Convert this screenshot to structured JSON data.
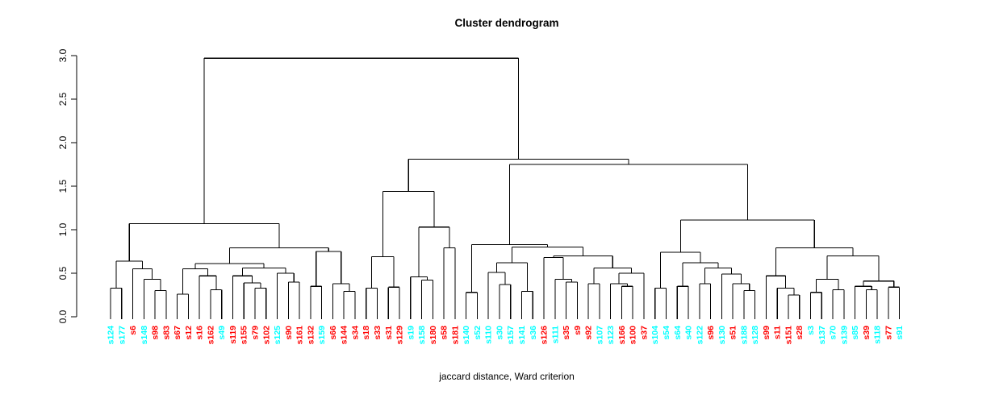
{
  "chart_data": {
    "type": "dendrogram",
    "title": "Cluster dendrogram",
    "xlabel": "jaccard distance, Ward criterion",
    "y_ticks": [
      "0.0",
      "0.5",
      "1.0",
      "1.5",
      "2.0",
      "2.5",
      "3.0"
    ],
    "ylim": [
      0,
      3
    ],
    "root_height": 2.97,
    "legend_colors": {
      "group_red": "#FF0000",
      "group_cyan": "#00FFFF"
    },
    "line_color": "#000000",
    "leaves": [
      {
        "label": "s124",
        "color": "#00FFFF"
      },
      {
        "label": "s177",
        "color": "#00FFFF"
      },
      {
        "label": "s6",
        "color": "#FF0000"
      },
      {
        "label": "s148",
        "color": "#00FFFF"
      },
      {
        "label": "s98",
        "color": "#FF0000"
      },
      {
        "label": "s83",
        "color": "#FF0000"
      },
      {
        "label": "s67",
        "color": "#FF0000"
      },
      {
        "label": "s12",
        "color": "#FF0000"
      },
      {
        "label": "s16",
        "color": "#FF0000"
      },
      {
        "label": "s162",
        "color": "#FF0000"
      },
      {
        "label": "s49",
        "color": "#00FFFF"
      },
      {
        "label": "s119",
        "color": "#FF0000"
      },
      {
        "label": "s155",
        "color": "#FF0000"
      },
      {
        "label": "s79",
        "color": "#FF0000"
      },
      {
        "label": "s102",
        "color": "#FF0000"
      },
      {
        "label": "s125",
        "color": "#00FFFF"
      },
      {
        "label": "s90",
        "color": "#FF0000"
      },
      {
        "label": "s161",
        "color": "#FF0000"
      },
      {
        "label": "s132",
        "color": "#FF0000"
      },
      {
        "label": "s159",
        "color": "#00FFFF"
      },
      {
        "label": "s66",
        "color": "#FF0000"
      },
      {
        "label": "s144",
        "color": "#FF0000"
      },
      {
        "label": "s34",
        "color": "#FF0000"
      },
      {
        "label": "s18",
        "color": "#FF0000"
      },
      {
        "label": "s33",
        "color": "#FF0000"
      },
      {
        "label": "s31",
        "color": "#FF0000"
      },
      {
        "label": "s129",
        "color": "#FF0000"
      },
      {
        "label": "s19",
        "color": "#00FFFF"
      },
      {
        "label": "s158",
        "color": "#00FFFF"
      },
      {
        "label": "s180",
        "color": "#FF0000"
      },
      {
        "label": "s58",
        "color": "#FF0000"
      },
      {
        "label": "s181",
        "color": "#FF0000"
      },
      {
        "label": "s140",
        "color": "#00FFFF"
      },
      {
        "label": "s52",
        "color": "#00FFFF"
      },
      {
        "label": "s110",
        "color": "#00FFFF"
      },
      {
        "label": "s30",
        "color": "#00FFFF"
      },
      {
        "label": "s157",
        "color": "#00FFFF"
      },
      {
        "label": "s141",
        "color": "#00FFFF"
      },
      {
        "label": "s36",
        "color": "#00FFFF"
      },
      {
        "label": "s126",
        "color": "#FF0000"
      },
      {
        "label": "s111",
        "color": "#00FFFF"
      },
      {
        "label": "s35",
        "color": "#FF0000"
      },
      {
        "label": "s9",
        "color": "#FF0000"
      },
      {
        "label": "s92",
        "color": "#FF0000"
      },
      {
        "label": "s107",
        "color": "#00FFFF"
      },
      {
        "label": "s123",
        "color": "#00FFFF"
      },
      {
        "label": "s166",
        "color": "#FF0000"
      },
      {
        "label": "s100",
        "color": "#FF0000"
      },
      {
        "label": "s37",
        "color": "#FF0000"
      },
      {
        "label": "s104",
        "color": "#00FFFF"
      },
      {
        "label": "s54",
        "color": "#00FFFF"
      },
      {
        "label": "s64",
        "color": "#00FFFF"
      },
      {
        "label": "s40",
        "color": "#00FFFF"
      },
      {
        "label": "s122",
        "color": "#00FFFF"
      },
      {
        "label": "s96",
        "color": "#FF0000"
      },
      {
        "label": "s130",
        "color": "#00FFFF"
      },
      {
        "label": "s51",
        "color": "#FF0000"
      },
      {
        "label": "s188",
        "color": "#00FFFF"
      },
      {
        "label": "s128",
        "color": "#00FFFF"
      },
      {
        "label": "s99",
        "color": "#FF0000"
      },
      {
        "label": "s11",
        "color": "#FF0000"
      },
      {
        "label": "s151",
        "color": "#FF0000"
      },
      {
        "label": "s28",
        "color": "#FF0000"
      },
      {
        "label": "s3",
        "color": "#00FFFF"
      },
      {
        "label": "s137",
        "color": "#00FFFF"
      },
      {
        "label": "s70",
        "color": "#00FFFF"
      },
      {
        "label": "s139",
        "color": "#00FFFF"
      },
      {
        "label": "s85",
        "color": "#00FFFF"
      },
      {
        "label": "s39",
        "color": "#FF0000"
      },
      {
        "label": "s118",
        "color": "#00FFFF"
      },
      {
        "label": "s77",
        "color": "#FF0000"
      },
      {
        "label": "s91",
        "color": "#00FFFF"
      }
    ],
    "tree": [
      2.97,
      [
        1.07,
        [
          0.64,
          [
            0.33,
            "s124",
            "s177"
          ],
          [
            0.55,
            "s6",
            [
              0.43,
              "s148",
              [
                0.3,
                "s98",
                "s83"
              ]
            ]
          ]
        ],
        [
          0.79,
          [
            0.61,
            [
              0.55,
              [
                0.26,
                "s67",
                "s12"
              ],
              [
                0.47,
                "s16",
                [
                  0.31,
                  "s162",
                  "s49"
                ]
              ]
            ],
            [
              0.56,
              [
                0.47,
                "s119",
                [
                  0.39,
                  "s155",
                  [
                    0.33,
                    "s79",
                    "s102"
                  ]
                ]
              ],
              [
                0.5,
                "s125",
                [
                  0.4,
                  "s90",
                  "s161"
                ]
              ]
            ]
          ],
          [
            0.75,
            [
              0.35,
              "s132",
              "s159"
            ],
            [
              0.38,
              "s66",
              [
                0.29,
                "s144",
                "s34"
              ]
            ]
          ]
        ]
      ],
      [
        1.81,
        [
          1.44,
          [
            0.69,
            [
              0.33,
              "s18",
              "s33"
            ],
            [
              0.34,
              "s31",
              "s129"
            ]
          ],
          [
            1.03,
            [
              0.46,
              "s19",
              [
                0.42,
                "s158",
                "s180"
              ]
            ],
            [
              0.79,
              "s58",
              "s181"
            ]
          ]
        ],
        [
          1.75,
          [
            0.83,
            [
              0.28,
              "s140",
              "s52"
            ],
            [
              0.8,
              [
                0.62,
                [
                  0.51,
                  "s110",
                  [
                    0.37,
                    "s30",
                    "s157"
                  ]
                ],
                [
                  0.29,
                  "s141",
                  "s36"
                ]
              ],
              [
                0.7,
                [
                  0.68,
                  "s126",
                  [
                    0.43,
                    "s111",
                    [
                      0.4,
                      "s35",
                      "s9"
                    ]
                  ]
                ],
                [
                  0.56,
                  [
                    0.38,
                    "s92",
                    "s107"
                  ],
                  [
                    0.5,
                    [
                      0.38,
                      "s123",
                      [
                        0.35,
                        "s166",
                        "s100"
                      ]
                    ],
                    "s37"
                  ]
                ]
              ]
            ]
          ],
          [
            1.11,
            [
              0.74,
              [
                0.33,
                "s104",
                "s54"
              ],
              [
                0.62,
                [
                  0.35,
                  "s64",
                  "s40"
                ],
                [
                  0.56,
                  [
                    0.38,
                    "s122",
                    "s96"
                  ],
                  [
                    0.49,
                    "s130",
                    [
                      0.38,
                      "s51",
                      [
                        0.3,
                        "s188",
                        "s128"
                      ]
                    ]
                  ]
                ]
              ]
            ],
            [
              0.79,
              [
                0.47,
                "s99",
                [
                  0.33,
                  "s11",
                  [
                    0.25,
                    "s151",
                    "s28"
                  ]
                ]
              ],
              [
                0.7,
                [
                  0.43,
                  [
                    0.28,
                    "s3",
                    "s137"
                  ],
                  [
                    0.31,
                    "s70",
                    "s139"
                  ]
                ],
                [
                  0.41,
                  [
                    0.35,
                    "s85",
                    [
                      0.31,
                      "s39",
                      "s118"
                    ]
                  ],
                  [
                    0.34,
                    "s77",
                    "s91"
                  ]
                ]
              ]
            ]
          ]
        ]
      ]
    ]
  }
}
